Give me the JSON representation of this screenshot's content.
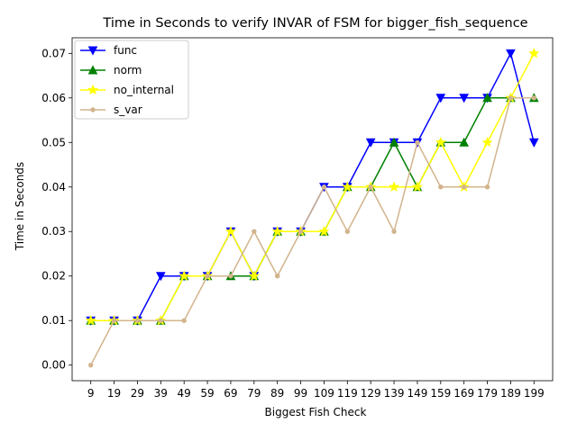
{
  "chart_data": {
    "type": "line",
    "title": "Time in Seconds to verify INVAR of FSM for bigger_fish_sequence",
    "xlabel": "Biggest Fish Check",
    "ylabel": "Time in Seconds",
    "categories": [
      "9",
      "19",
      "29",
      "39",
      "49",
      "59",
      "69",
      "79",
      "89",
      "99",
      "109",
      "119",
      "129",
      "139",
      "149",
      "159",
      "169",
      "179",
      "189",
      "199"
    ],
    "ylim": [
      -0.0035,
      0.0735
    ],
    "yticks": [
      "0.00",
      "0.01",
      "0.02",
      "0.03",
      "0.04",
      "0.05",
      "0.06",
      "0.07"
    ],
    "ytick_values": [
      0,
      0.01,
      0.02,
      0.03,
      0.04,
      0.05,
      0.06,
      0.07
    ],
    "grid": false,
    "legend_position": "top-left",
    "series": [
      {
        "name": "func",
        "color": "#0000ff",
        "marker": "triangle-down",
        "values": [
          0.01,
          0.01,
          0.01,
          0.02,
          0.02,
          0.02,
          0.03,
          0.02,
          0.03,
          0.03,
          0.04,
          0.04,
          0.05,
          0.05,
          0.05,
          0.06,
          0.06,
          0.06,
          0.07,
          0.05
        ]
      },
      {
        "name": "norm",
        "color": "#008000",
        "marker": "triangle-up",
        "values": [
          0.01,
          0.01,
          0.01,
          0.01,
          0.02,
          0.02,
          0.02,
          0.02,
          0.03,
          0.03,
          0.03,
          0.04,
          0.04,
          0.05,
          0.04,
          0.05,
          0.05,
          0.06,
          0.06,
          0.06
        ]
      },
      {
        "name": "no_internal",
        "color": "#ffff00",
        "marker": "star",
        "values": [
          0.01,
          0.01,
          0.01,
          0.01,
          0.02,
          0.02,
          0.03,
          0.02,
          0.03,
          0.03,
          0.03,
          0.04,
          0.04,
          0.04,
          0.04,
          0.05,
          0.04,
          0.05,
          0.06,
          0.07
        ]
      },
      {
        "name": "s_var",
        "color": "#d2b48c",
        "marker": "circle",
        "values": [
          0.0,
          0.01,
          0.01,
          0.01,
          0.01,
          0.02,
          0.02,
          0.03,
          0.02,
          0.03,
          0.04,
          0.03,
          0.04,
          0.03,
          0.05,
          0.04,
          0.04,
          0.04,
          0.06,
          0.06
        ]
      }
    ]
  }
}
